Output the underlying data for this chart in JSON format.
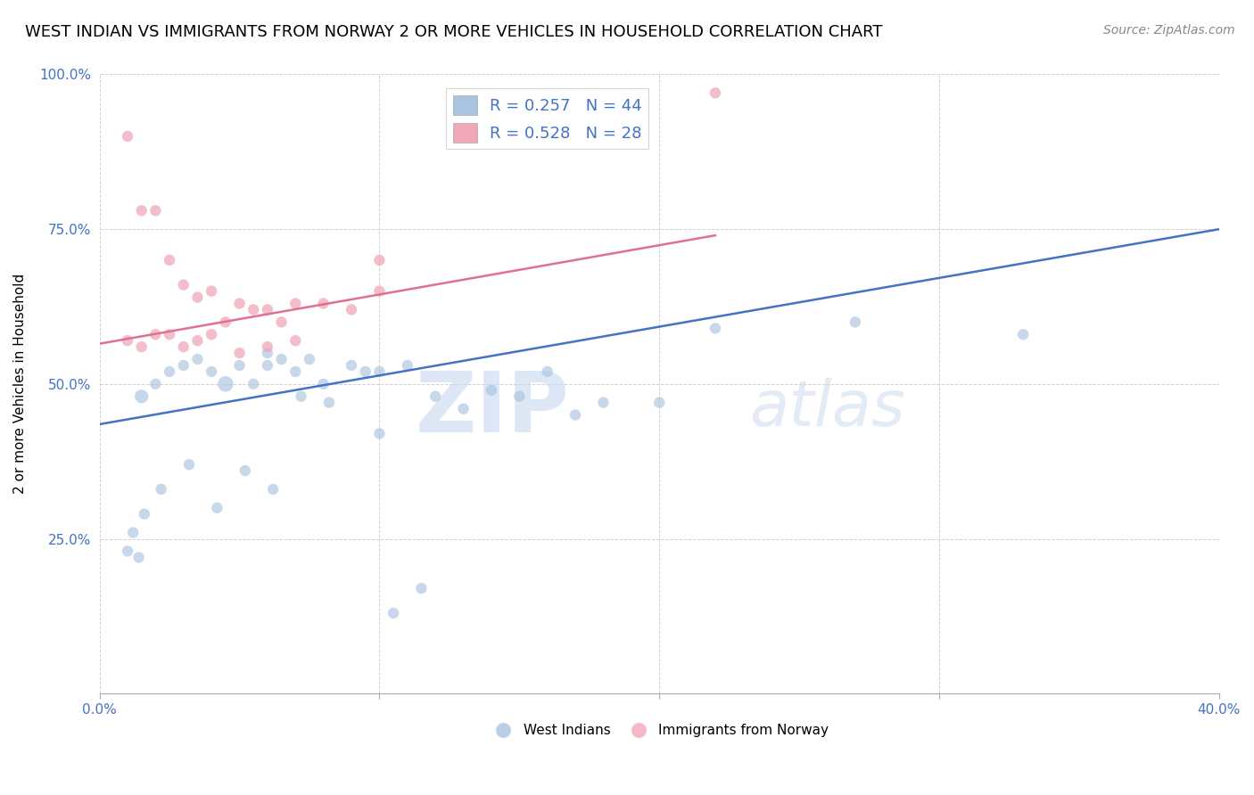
{
  "title": "WEST INDIAN VS IMMIGRANTS FROM NORWAY 2 OR MORE VEHICLES IN HOUSEHOLD CORRELATION CHART",
  "source": "Source: ZipAtlas.com",
  "ylabel": "2 or more Vehicles in Household",
  "xlim": [
    0.0,
    40.0
  ],
  "ylim": [
    0.0,
    100.0
  ],
  "yticks": [
    0.0,
    25.0,
    50.0,
    75.0,
    100.0
  ],
  "ytick_labels": [
    "",
    "25.0%",
    "50.0%",
    "75.0%",
    "100.0%"
  ],
  "xticks": [
    0.0,
    10.0,
    20.0,
    30.0,
    40.0
  ],
  "xtick_labels": [
    "0.0%",
    "",
    "",
    "",
    "40.0%"
  ],
  "legend_blue_label": "R = 0.257   N = 44",
  "legend_pink_label": "R = 0.528   N = 28",
  "blue_color": "#a8c4e0",
  "pink_color": "#f0a8b8",
  "blue_line_color": "#4472c4",
  "pink_line_color": "#e07090",
  "blue_scatter": {
    "x": [
      1.5,
      2.0,
      2.5,
      3.0,
      3.5,
      4.0,
      4.5,
      5.0,
      5.5,
      6.0,
      6.0,
      6.5,
      7.0,
      7.5,
      8.0,
      9.0,
      9.5,
      10.0,
      11.0,
      12.0,
      13.0,
      14.0,
      15.0,
      16.0,
      17.0,
      18.0,
      20.0,
      22.0,
      27.0,
      33.0,
      1.0,
      1.2,
      1.4,
      1.6,
      2.2,
      3.2,
      4.2,
      5.2,
      6.2,
      7.2,
      8.2,
      10.0,
      10.5,
      11.5
    ],
    "y": [
      48.0,
      50.0,
      52.0,
      53.0,
      54.0,
      52.0,
      50.0,
      53.0,
      50.0,
      55.0,
      53.0,
      54.0,
      52.0,
      54.0,
      50.0,
      53.0,
      52.0,
      52.0,
      53.0,
      48.0,
      46.0,
      49.0,
      48.0,
      52.0,
      45.0,
      47.0,
      47.0,
      59.0,
      60.0,
      58.0,
      23.0,
      26.0,
      22.0,
      29.0,
      33.0,
      37.0,
      30.0,
      36.0,
      33.0,
      48.0,
      47.0,
      42.0,
      13.0,
      17.0
    ],
    "sizes": [
      120,
      80,
      80,
      80,
      80,
      80,
      160,
      80,
      80,
      80,
      80,
      80,
      80,
      80,
      80,
      80,
      80,
      80,
      80,
      80,
      80,
      80,
      80,
      80,
      80,
      80,
      80,
      80,
      80,
      80,
      80,
      80,
      80,
      80,
      80,
      80,
      80,
      80,
      80,
      80,
      80,
      80,
      80,
      80
    ]
  },
  "pink_scatter": {
    "x": [
      1.0,
      1.5,
      2.0,
      2.5,
      3.0,
      3.5,
      4.0,
      4.5,
      5.0,
      5.5,
      6.0,
      6.5,
      7.0,
      8.0,
      9.0,
      10.0,
      1.0,
      1.5,
      2.0,
      2.5,
      3.0,
      3.5,
      4.0,
      5.0,
      6.0,
      7.0,
      10.0,
      22.0
    ],
    "y": [
      90.0,
      78.0,
      78.0,
      70.0,
      66.0,
      64.0,
      65.0,
      60.0,
      63.0,
      62.0,
      62.0,
      60.0,
      63.0,
      63.0,
      62.0,
      65.0,
      57.0,
      56.0,
      58.0,
      58.0,
      56.0,
      57.0,
      58.0,
      55.0,
      56.0,
      57.0,
      70.0,
      97.0
    ],
    "sizes": [
      80,
      80,
      80,
      80,
      80,
      80,
      80,
      80,
      80,
      80,
      80,
      80,
      80,
      80,
      80,
      80,
      80,
      80,
      80,
      80,
      80,
      80,
      80,
      80,
      80,
      80,
      80,
      80
    ]
  },
  "blue_line_x": [
    0.0,
    40.0
  ],
  "blue_line_y": [
    43.5,
    75.0
  ],
  "pink_line_x": [
    0.0,
    22.0
  ],
  "pink_line_y": [
    56.5,
    74.0
  ],
  "watermark_zip": "ZIP",
  "watermark_atlas": "atlas",
  "title_fontsize": 13,
  "label_fontsize": 11,
  "tick_fontsize": 11,
  "legend_fontsize": 13
}
